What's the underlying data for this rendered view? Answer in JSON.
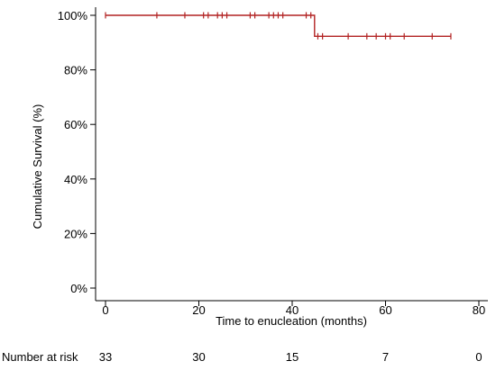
{
  "chart_data": {
    "type": "line",
    "subtype": "kaplan-meier",
    "title": "",
    "xlabel": "Time to enucleation (months)",
    "ylabel": "Cumulative Survival (%)",
    "xlim": [
      0,
      80
    ],
    "ylim": [
      0,
      100
    ],
    "x_ticks": [
      0,
      20,
      40,
      60,
      80
    ],
    "y_ticks": [
      {
        "value": 0,
        "label": "0%"
      },
      {
        "value": 20,
        "label": "20%"
      },
      {
        "value": 40,
        "label": "40%"
      },
      {
        "value": 60,
        "label": "60%"
      },
      {
        "value": 80,
        "label": "80%"
      },
      {
        "value": 100,
        "label": "100%"
      }
    ],
    "grid": false,
    "line_color": "#b22222",
    "series": [
      {
        "steps": [
          {
            "x": 0,
            "y": 100
          },
          {
            "x": 44.8,
            "y": 100
          },
          {
            "x": 44.8,
            "y": 92.3
          },
          {
            "x": 74,
            "y": 92.3
          }
        ],
        "censored": [
          {
            "x": 0,
            "y": 100
          },
          {
            "x": 11,
            "y": 100
          },
          {
            "x": 17,
            "y": 100
          },
          {
            "x": 21,
            "y": 100
          },
          {
            "x": 22,
            "y": 100
          },
          {
            "x": 24,
            "y": 100
          },
          {
            "x": 25,
            "y": 100
          },
          {
            "x": 26,
            "y": 100
          },
          {
            "x": 31,
            "y": 100
          },
          {
            "x": 32,
            "y": 100
          },
          {
            "x": 35,
            "y": 100
          },
          {
            "x": 36,
            "y": 100
          },
          {
            "x": 37,
            "y": 100
          },
          {
            "x": 38,
            "y": 100
          },
          {
            "x": 43,
            "y": 100
          },
          {
            "x": 44,
            "y": 100
          },
          {
            "x": 45.5,
            "y": 92.3
          },
          {
            "x": 46.5,
            "y": 92.3
          },
          {
            "x": 52,
            "y": 92.3
          },
          {
            "x": 56,
            "y": 92.3
          },
          {
            "x": 58,
            "y": 92.3
          },
          {
            "x": 60,
            "y": 92.3
          },
          {
            "x": 61,
            "y": 92.3
          },
          {
            "x": 64,
            "y": 92.3
          },
          {
            "x": 70,
            "y": 92.3
          },
          {
            "x": 74,
            "y": 92.3
          }
        ]
      }
    ],
    "risk_table": {
      "label": "Number at risk",
      "times": [
        0,
        20,
        40,
        60,
        80
      ],
      "counts": [
        "33",
        "30",
        "15",
        "7",
        "0"
      ]
    }
  }
}
